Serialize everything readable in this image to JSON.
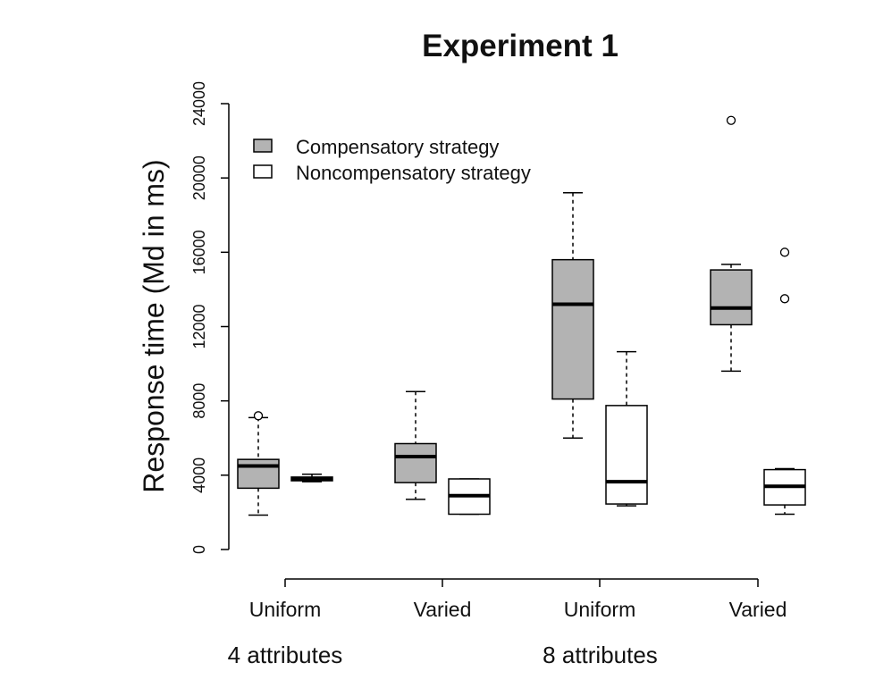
{
  "chart_data": {
    "type": "box",
    "title": "Experiment 1",
    "ylabel": "Response time (Md in ms)",
    "xlabel": "",
    "ylim": [
      0,
      24000
    ],
    "yticks": [
      0,
      4000,
      8000,
      12000,
      16000,
      20000,
      24000
    ],
    "grid": false,
    "legend_position": "top-left",
    "groups": [
      {
        "label": "4 attributes",
        "categories": [
          "Uniform",
          "Varied"
        ]
      },
      {
        "label": "8 attributes",
        "categories": [
          "Uniform",
          "Varied"
        ]
      }
    ],
    "categories": [
      "Uniform",
      "Varied",
      "Uniform",
      "Varied"
    ],
    "series": [
      {
        "name": "Compensatory strategy",
        "color": "#b3b3b3",
        "boxes": [
          {
            "whisker_low": 1850,
            "q1": 3300,
            "median": 4500,
            "q3": 4850,
            "whisker_high": 7100,
            "outliers": [
              7200
            ]
          },
          {
            "whisker_low": 2700,
            "q1": 3600,
            "median": 5000,
            "q3": 5700,
            "whisker_high": 8500,
            "outliers": []
          },
          {
            "whisker_low": 6000,
            "q1": 8100,
            "median": 13200,
            "q3": 15600,
            "whisker_high": 19200,
            "outliers": []
          },
          {
            "whisker_low": 9600,
            "q1": 12100,
            "median": 13000,
            "q3": 15050,
            "whisker_high": 15350,
            "outliers": [
              23100
            ]
          }
        ]
      },
      {
        "name": "Noncompensatory strategy",
        "color": "#ffffff",
        "boxes": [
          {
            "whisker_low": 3650,
            "q1": 3700,
            "median": 3800,
            "q3": 3900,
            "whisker_high": 4050,
            "outliers": []
          },
          {
            "whisker_low": 1900,
            "q1": 1900,
            "median": 2900,
            "q3": 3800,
            "whisker_high": 3800,
            "outliers": []
          },
          {
            "whisker_low": 2350,
            "q1": 2450,
            "median": 3650,
            "q3": 7750,
            "whisker_high": 10650,
            "outliers": []
          },
          {
            "whisker_low": 1900,
            "q1": 2400,
            "median": 3400,
            "q3": 4300,
            "whisker_high": 4350,
            "outliers": [
              16000,
              13500
            ]
          }
        ]
      }
    ]
  }
}
